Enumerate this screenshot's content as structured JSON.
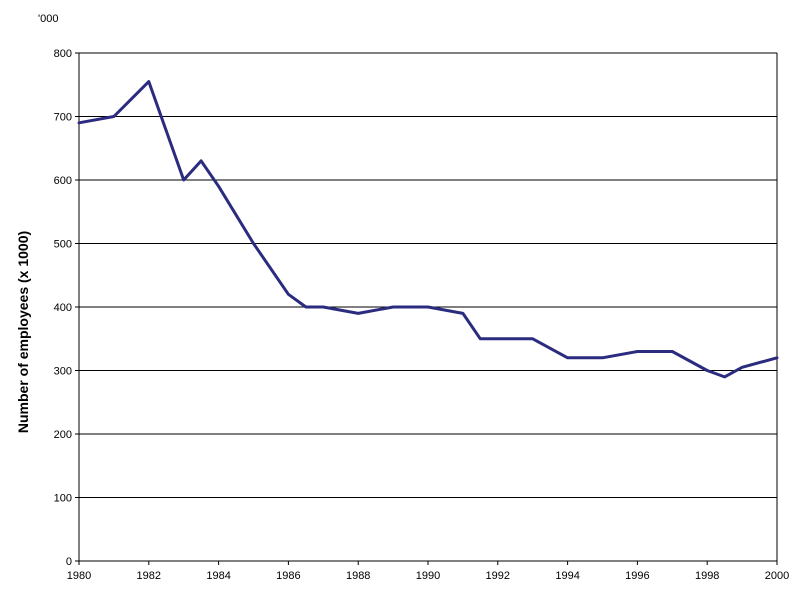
{
  "chart_data": {
    "type": "line",
    "title": "",
    "unit_label": "'000",
    "xlabel": "",
    "ylabel": "Number of employees (x 1000)",
    "xlim": [
      1980,
      2000
    ],
    "ylim": [
      0,
      800
    ],
    "x_ticks": [
      "1980",
      "1982",
      "1984",
      "1986",
      "1988",
      "1990",
      "1992",
      "1994",
      "1996",
      "1998",
      "2000"
    ],
    "y_ticks": [
      "0",
      "100",
      "200",
      "300",
      "400",
      "500",
      "600",
      "700",
      "800"
    ],
    "grid": "horizontal",
    "legend": "none",
    "line_color": "#2b2b7f",
    "series": [
      {
        "x": [
          1980,
          1981,
          1982,
          1983,
          1983.5,
          1984,
          1985,
          1986,
          1986.5,
          1987,
          1988,
          1989,
          1990,
          1991,
          1991.5,
          1992,
          1993,
          1994,
          1995,
          1996,
          1997,
          1998,
          1998.5,
          1999,
          2000
        ],
        "values": [
          690,
          700,
          755,
          600,
          630,
          590,
          500,
          420,
          400,
          400,
          390,
          400,
          400,
          390,
          350,
          350,
          350,
          320,
          320,
          330,
          330,
          300,
          290,
          305,
          320
        ]
      }
    ]
  }
}
